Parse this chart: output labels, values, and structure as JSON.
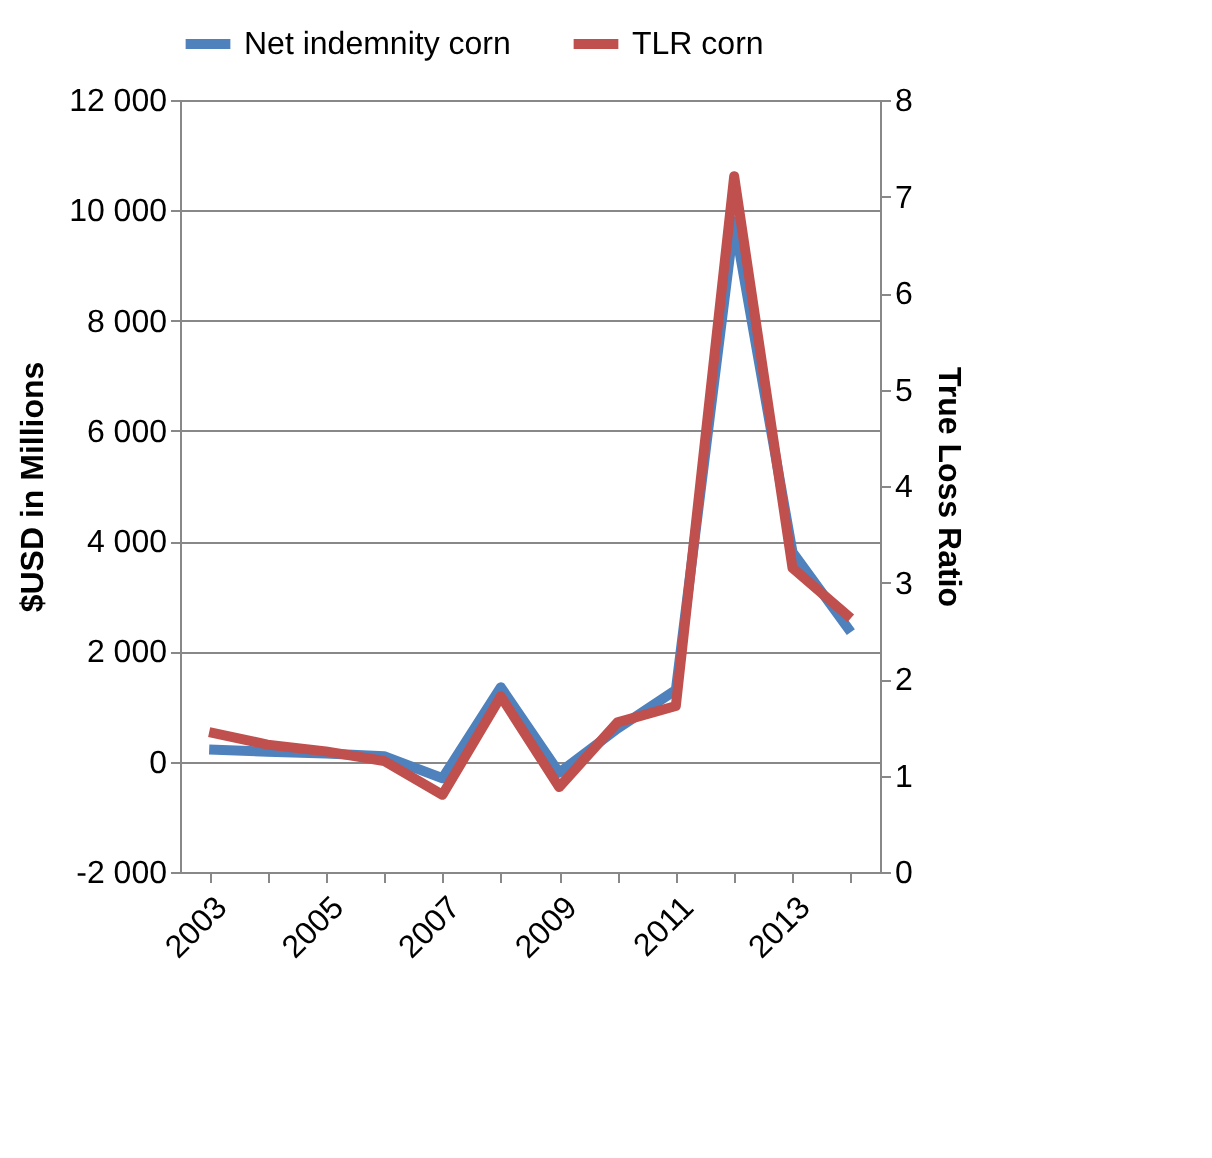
{
  "chart_data": {
    "type": "line",
    "ylabel": "$USD in Millions",
    "y2label": "True Loss Ratio",
    "categories": [
      "2003",
      null,
      "2005",
      null,
      "2007",
      null,
      "2009",
      null,
      "2011",
      null,
      "2013",
      null
    ],
    "series": [
      {
        "name": "Net indemnity corn",
        "color": "#4f81bd",
        "values": [
          220,
          180,
          150,
          100,
          -300,
          1350,
          -200,
          600,
          1300,
          9800,
          3800,
          2350
        ]
      },
      {
        "name": "TLR corn",
        "color": "#c0504d",
        "axis": "y2",
        "values": [
          1.45,
          1.32,
          1.25,
          1.15,
          0.8,
          1.82,
          0.88,
          1.55,
          1.72,
          7.21,
          3.15,
          2.63
        ]
      }
    ],
    "ylim": [
      -2000,
      12000
    ],
    "yticks": [
      {
        "value": -2000,
        "label": "-2 000"
      },
      0,
      {
        "value": 2000,
        "label": "2 000"
      },
      {
        "value": 4000,
        "label": "4 000"
      },
      {
        "value": 6000,
        "label": "6 000"
      },
      {
        "value": 8000,
        "label": "8 000"
      },
      {
        "value": 10000,
        "label": "10 000"
      },
      {
        "value": 12000,
        "label": "12 000"
      }
    ],
    "y2lim": [
      0,
      8
    ],
    "y2ticks": [
      0,
      1,
      2,
      3,
      4,
      5,
      6,
      7,
      8
    ],
    "grid": "y",
    "legend": "top",
    "marker": "none",
    "line_style": "solid"
  }
}
